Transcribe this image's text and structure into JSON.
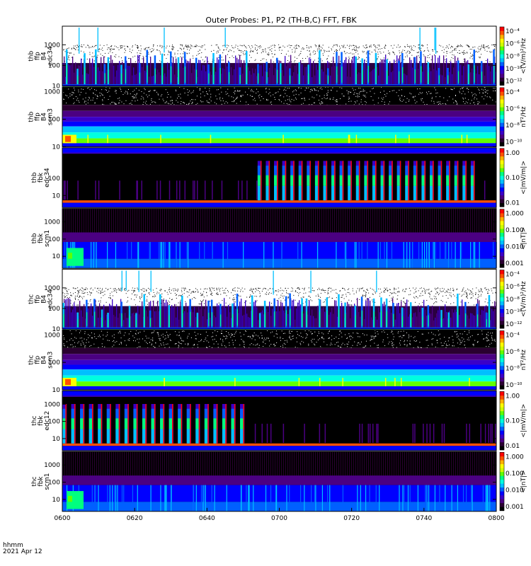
{
  "title": "Outer Probes: P1, P2 (TH-B,C) FFT, FBK",
  "timestamp": {
    "line1": "hhmm",
    "line2": "2021 Apr 12"
  },
  "x_ticks": [
    "0600",
    "0620",
    "0640",
    "0700",
    "0720",
    "0740",
    "0800"
  ],
  "colormap": [
    "#000000",
    "#2a0030",
    "#4b0082",
    "#3a00c8",
    "#0000ff",
    "#0060ff",
    "#00c0ff",
    "#00ffe0",
    "#00ff80",
    "#60ff00",
    "#d0ff00",
    "#ffff00",
    "#ffb000",
    "#ff5000",
    "#ff0000"
  ],
  "chart_data": [
    {
      "type": "heatmap",
      "name": "thb ffp B4 edc34",
      "ylabel_lines": [
        "thb",
        "ffp",
        "B4",
        "edc34"
      ],
      "y_ticks": [
        "10",
        "100",
        "1000"
      ],
      "ylim": [
        10,
        8000
      ],
      "y_scale": "log",
      "colorbar": {
        "label": "<(V/m)²/Hz",
        "ticks": [
          "10⁻⁴",
          "10⁻⁶",
          "10⁻⁸",
          "10⁻¹⁰",
          "10⁻¹²"
        ]
      },
      "pattern": "bursts",
      "lit_from": 0.0,
      "lit_to": 1.0,
      "cols": 50
    },
    {
      "type": "heatmap",
      "name": "thb ffp B4 scm3",
      "ylabel_lines": [
        "thb",
        "ffp",
        "B4",
        "scm3"
      ],
      "y_ticks": [
        "10",
        "100",
        "1000"
      ],
      "ylim": [
        10,
        1500
      ],
      "y_scale": "log",
      "colorbar": {
        "label": "nT²/Hz",
        "ticks": [
          "10⁻⁴",
          "10⁻⁶",
          "10⁻⁸",
          "10⁻¹⁰"
        ]
      },
      "pattern": "scm"
    },
    {
      "type": "heatmap",
      "name": "thb fbk edc34",
      "ylabel_lines": [
        "thb",
        "fbk",
        "edc34"
      ],
      "y_ticks": [
        "10",
        "100"
      ],
      "ylim": [
        2,
        6000
      ],
      "y_scale": "log",
      "colorbar": {
        "label": "<|mV/m|>",
        "ticks": [
          "1.00",
          "0.10",
          "0.01"
        ]
      },
      "pattern": "fbk",
      "lit_from": 0.45,
      "lit_to": 0.96,
      "cols": 27
    },
    {
      "type": "heatmap",
      "name": "thb fbk scm1",
      "ylabel_lines": [
        "thb",
        "fbk",
        "scm1"
      ],
      "y_ticks": [
        "10",
        "100",
        "1000"
      ],
      "ylim": [
        2,
        6000
      ],
      "y_scale": "log",
      "colorbar": {
        "label": "<|nT|>",
        "ticks": [
          "1.000",
          "0.100",
          "0.010",
          "0.001"
        ]
      },
      "pattern": "fbkscm"
    },
    {
      "type": "heatmap",
      "name": "thc ffp B4 edc34",
      "ylabel_lines": [
        "thc",
        "ffp",
        "B4",
        "edc34"
      ],
      "y_ticks": [
        "10",
        "100",
        "1000"
      ],
      "ylim": [
        10,
        8000
      ],
      "y_scale": "log",
      "colorbar": {
        "label": "<(V/m)²/Hz",
        "ticks": [
          "10⁻⁴",
          "10⁻⁶",
          "10⁻⁸",
          "10⁻¹⁰",
          "10⁻¹²"
        ]
      },
      "pattern": "bursts",
      "lit_from": 0.0,
      "lit_to": 1.0,
      "cols": 50
    },
    {
      "type": "heatmap",
      "name": "thc ffp B4 scm3",
      "ylabel_lines": [
        "thc",
        "ffp",
        "B4",
        "scm3"
      ],
      "y_ticks": [
        "10",
        "100",
        "1000"
      ],
      "ylim": [
        10,
        1500
      ],
      "y_scale": "log",
      "colorbar": {
        "label": "nT²/Hz",
        "ticks": [
          "10⁻⁴",
          "10⁻⁶",
          "10⁻⁸",
          "10⁻¹⁰"
        ]
      },
      "pattern": "scm"
    },
    {
      "type": "heatmap",
      "name": "thc fbk edc12",
      "ylabel_lines": [
        "thc",
        "fbk",
        "edc12"
      ],
      "y_ticks": [
        "10",
        "100",
        "1000"
      ],
      "ylim": [
        2,
        6000
      ],
      "y_scale": "log",
      "colorbar": {
        "label": "<|mV/m|>",
        "ticks": [
          "1.00",
          "0.10",
          "0.01"
        ]
      },
      "pattern": "fbk",
      "lit_from": 0.0,
      "lit_to": 0.43,
      "cols": 21
    },
    {
      "type": "heatmap",
      "name": "thc fbk scm1",
      "ylabel_lines": [
        "thc",
        "fbk",
        "scm1"
      ],
      "y_ticks": [
        "10",
        "100",
        "1000"
      ],
      "ylim": [
        2,
        6000
      ],
      "y_scale": "log",
      "colorbar": {
        "label": "<|nT|>",
        "ticks": [
          "1.000",
          "0.100",
          "0.010",
          "0.001"
        ]
      },
      "pattern": "fbkscm"
    }
  ]
}
